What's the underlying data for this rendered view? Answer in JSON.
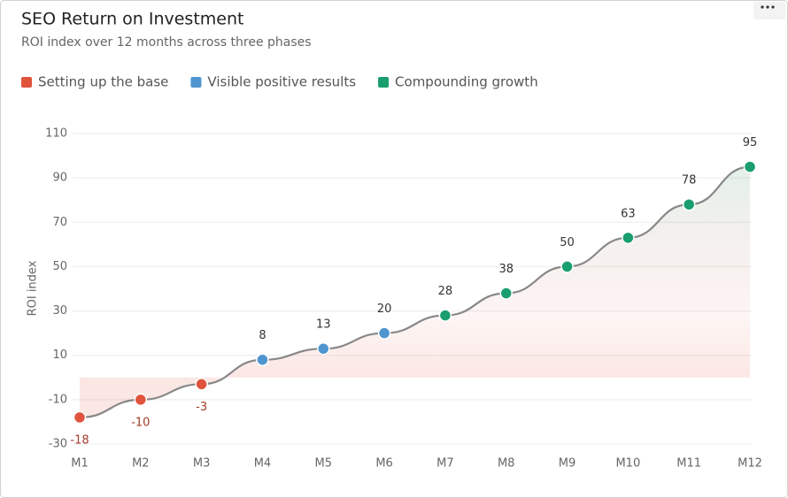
{
  "chart_data": {
    "type": "line",
    "title": "SEO Return on Investment",
    "subtitle": "ROI index over 12 months across three phases",
    "y_label": "ROI index",
    "legend": [
      {
        "name": "Setting up the base",
        "color": "#e0533d"
      },
      {
        "name": "Visible positive results",
        "color": "#4f95cf"
      },
      {
        "name": "Compounding growth",
        "color": "#1a9e6e"
      }
    ],
    "categories": [
      "M1",
      "M2",
      "M3",
      "M4",
      "M5",
      "M6",
      "M7",
      "M8",
      "M9",
      "M10",
      "M11",
      "M12"
    ],
    "values": [
      -18,
      -10,
      -3,
      8,
      13,
      20,
      28,
      38,
      50,
      63,
      78,
      95
    ],
    "point_colors": [
      "#e0533d",
      "#e0533d",
      "#e0533d",
      "#4f95cf",
      "#4f95cf",
      "#4f95cf",
      "#1a9e6e",
      "#1a9e6e",
      "#1a9e6e",
      "#1a9e6e",
      "#1a9e6e",
      "#1a9e6e"
    ],
    "line_color": "#888888",
    "ylim": [
      -30,
      110
    ],
    "yticks": [
      -30,
      -10,
      10,
      30,
      50,
      70,
      90,
      110
    ],
    "grid": true
  }
}
